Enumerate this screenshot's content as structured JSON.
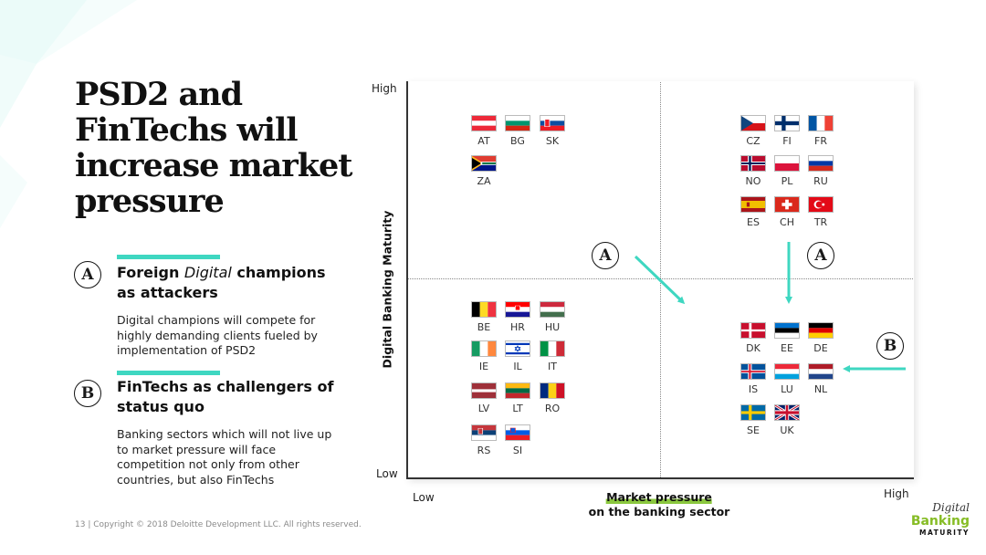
{
  "title": "PSD2 and FinTechs will increase market pressure",
  "sections": [
    {
      "badge": "A",
      "title_pre": "Foreign ",
      "title_em": "Digital",
      "title_post": " champions as attackers",
      "body": "Digital champions will compete for highly demanding clients fueled by implementation of PSD2"
    },
    {
      "badge": "B",
      "title_pre": "FinTechs as challengers of status quo",
      "title_em": "",
      "title_post": "",
      "body": "Banking sectors which will not live up to market pressure will face competition not only from other countries, but also FinTechs"
    }
  ],
  "footer": "13 | Copyright © 2018 Deloitte Development LLC. All rights reserved.",
  "chart": {
    "y_axis_label": "Digital Banking Maturity",
    "y_high": "High",
    "y_low": "Low",
    "x_axis_label_line1": "Market pressure",
    "x_axis_label_line2": "on the banking sector",
    "x_low": "Low",
    "x_high": "High",
    "markers": [
      "A",
      "A",
      "B"
    ],
    "quadrants": {
      "top_left": [
        "AT",
        "BG",
        "SK",
        "ZA"
      ],
      "top_right": [
        "CZ",
        "FI",
        "FR",
        "NO",
        "PL",
        "RU",
        "ES",
        "CH",
        "TR"
      ],
      "bottom_left": [
        "BE",
        "HR",
        "HU",
        "IE",
        "IL",
        "IT",
        "LV",
        "LT",
        "RO",
        "RS",
        "SI"
      ],
      "bottom_right": [
        "DK",
        "EE",
        "DE",
        "IS",
        "LU",
        "NL",
        "SE",
        "UK"
      ]
    },
    "colors": {
      "arrow": "#3fd7c1",
      "highlight": "#8bc83f"
    }
  },
  "logo": {
    "line1": "Digital",
    "line2": "Banking",
    "line3": "MATURITY"
  }
}
